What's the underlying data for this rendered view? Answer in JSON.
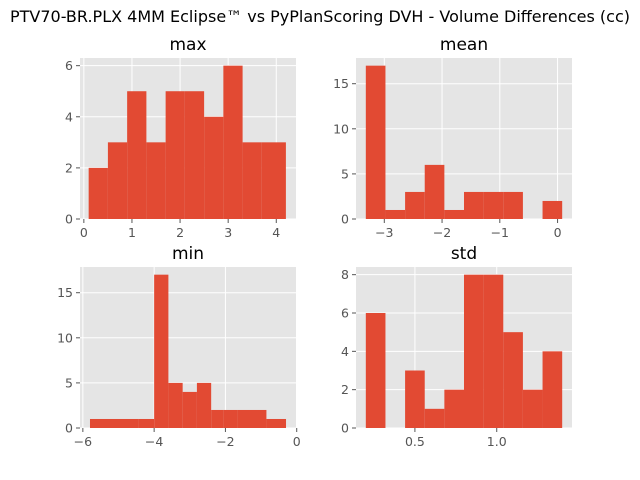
{
  "figure": {
    "suptitle": "PTV70-BR.PLX 4MM Eclipse™ vs PyPlanScoring DVH - Volume Differences (cc)"
  },
  "style": {
    "bar_color": "#E24A33",
    "panel_bg": "#E5E5E5",
    "grid_color": "#FFFFFF",
    "tick_color": "#555555"
  },
  "chart_data": [
    {
      "type": "bar",
      "title": "max",
      "bins": [
        [
          0.1,
          0.5
        ],
        [
          0.5,
          0.9
        ],
        [
          0.9,
          1.3
        ],
        [
          1.3,
          1.7
        ],
        [
          1.7,
          2.1
        ],
        [
          2.1,
          2.5
        ],
        [
          2.5,
          2.9
        ],
        [
          2.9,
          3.3
        ],
        [
          3.3,
          3.7
        ],
        [
          3.7,
          4.2
        ]
      ],
      "counts": [
        2,
        3,
        5,
        3,
        5,
        5,
        4,
        6,
        3,
        3
      ],
      "xlim": [
        -0.08,
        4.41
      ],
      "ylim": [
        0,
        6.3
      ],
      "xticks": [
        0,
        1,
        2,
        3,
        4
      ],
      "xtick_labels": [
        "0",
        "1",
        "2",
        "3",
        "4"
      ],
      "yticks": [
        0,
        2,
        4,
        6
      ],
      "ytick_labels": [
        "0",
        "2",
        "4",
        "6"
      ],
      "grid": true
    },
    {
      "type": "bar",
      "title": "mean",
      "bins": [
        [
          -3.32,
          -2.98
        ],
        [
          -2.98,
          -2.64
        ],
        [
          -2.64,
          -2.3
        ],
        [
          -2.3,
          -1.96
        ],
        [
          -1.96,
          -1.62
        ],
        [
          -1.62,
          -1.28
        ],
        [
          -1.28,
          -0.94
        ],
        [
          -0.94,
          -0.6
        ],
        [
          -0.6,
          -0.26
        ],
        [
          -0.26,
          0.08
        ]
      ],
      "counts": [
        17,
        1,
        3,
        6,
        1,
        3,
        3,
        3,
        0,
        2
      ],
      "xlim": [
        -3.49,
        0.25
      ],
      "ylim": [
        0,
        17.85
      ],
      "xticks": [
        -3,
        -2,
        -1,
        0
      ],
      "xtick_labels": [
        "−3",
        "−2",
        "−1",
        "0"
      ],
      "yticks": [
        0,
        5,
        10,
        15
      ],
      "ytick_labels": [
        "0",
        "5",
        "10",
        "15"
      ],
      "grid": true
    },
    {
      "type": "bar",
      "title": "min",
      "bins": [
        [
          -5.8,
          -4.45
        ],
        [
          -4.45,
          -4.0
        ],
        [
          -4.0,
          -3.6
        ],
        [
          -3.6,
          -3.2
        ],
        [
          -3.2,
          -2.8
        ],
        [
          -2.8,
          -2.4
        ],
        [
          -2.4,
          -2.05
        ],
        [
          -2.05,
          -1.65
        ],
        [
          -1.65,
          -0.85
        ],
        [
          -0.85,
          -0.3
        ]
      ],
      "counts": [
        1,
        1,
        17,
        5,
        4,
        5,
        2,
        2,
        2,
        1
      ],
      "xlim": [
        -6.08,
        -0.02
      ],
      "ylim": [
        0,
        17.85
      ],
      "xticks": [
        -6,
        -4,
        -2,
        0
      ],
      "xtick_labels": [
        "−6",
        "−4",
        "−2",
        "0"
      ],
      "yticks": [
        0,
        5,
        10,
        15
      ],
      "ytick_labels": [
        "0",
        "5",
        "10",
        "15"
      ],
      "grid": true
    },
    {
      "type": "bar",
      "title": "std",
      "bins": [
        [
          0.2,
          0.32
        ],
        [
          0.32,
          0.44
        ],
        [
          0.44,
          0.56
        ],
        [
          0.56,
          0.68
        ],
        [
          0.68,
          0.8
        ],
        [
          0.8,
          0.92
        ],
        [
          0.92,
          1.04
        ],
        [
          1.04,
          1.16
        ],
        [
          1.16,
          1.28
        ],
        [
          1.28,
          1.4
        ]
      ],
      "counts": [
        6,
        0,
        3,
        1,
        2,
        8,
        8,
        5,
        2,
        4
      ],
      "xlim": [
        0.14,
        1.46
      ],
      "ylim": [
        0,
        8.4
      ],
      "xticks": [
        0.5,
        1.0
      ],
      "xtick_labels": [
        "0.5",
        "1.0"
      ],
      "yticks": [
        0,
        2,
        4,
        6,
        8
      ],
      "ytick_labels": [
        "0",
        "2",
        "4",
        "6",
        "8"
      ],
      "grid": true
    }
  ]
}
